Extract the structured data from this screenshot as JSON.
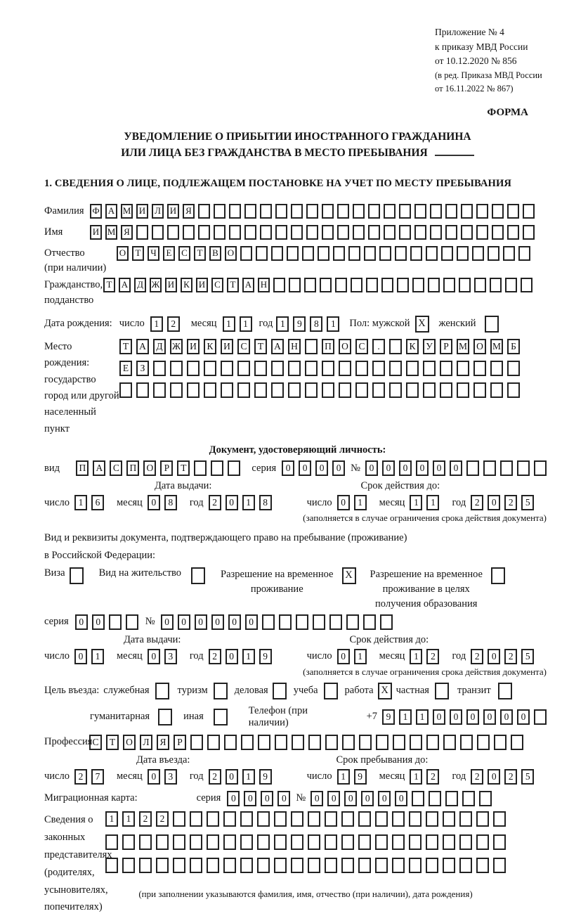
{
  "header": {
    "lines": [
      "Приложение № 4",
      "к приказу МВД России",
      "от 10.12.2020 № 856"
    ],
    "revision_lines": [
      "(в ред. Приказа МВД России",
      "от 16.11.2022 № 867)"
    ],
    "forma": "ФОРМА"
  },
  "title": {
    "line1": "УВЕДОМЛЕНИЕ О ПРИБЫТИИ ИНОСТРАННОГО ГРАЖДАНИНА",
    "line2": "ИЛИ ЛИЦА БЕЗ ГРАЖДАНСТВА В МЕСТО ПРЕБЫВАНИЯ"
  },
  "section1_heading": "1. СВЕДЕНИЯ О ЛИЦЕ, ПОДЛЕЖАЩЕМ ПОСТАНОВКЕ НА УЧЕТ ПО МЕСТУ ПРЕБЫВАНИЯ",
  "surname": {
    "label": "Фамилия",
    "value": "ФАМИЛИЯ",
    "count": 29
  },
  "firstname": {
    "label": "Имя",
    "value": "ИМЯ",
    "count": 29
  },
  "patronymic": {
    "label": "Отчество",
    "label_note": "(при наличии)",
    "value": "ОТЧЕСТВО",
    "count": 27
  },
  "citizenship": {
    "label": "Гражданство,",
    "label2": "подданство",
    "value": "ТАДЖИКИСТАН",
    "count": 28
  },
  "birth_date": {
    "label": "Дата рождения:",
    "day_label": "число",
    "day": {
      "value": "12",
      "count": 2
    },
    "month_label": "месяц",
    "month": {
      "value": "11",
      "count": 2
    },
    "year_label": "год",
    "year": {
      "value": "1981",
      "count": 4
    },
    "sex_label": "Пол: мужской",
    "male_checked": true,
    "female_label": "женский",
    "female_checked": false
  },
  "birth_place": {
    "label_lines": [
      "Место рождения:",
      "государство",
      "город или другой",
      "населенный пункт"
    ],
    "row1": {
      "value": "ТАДЖИКИСТАН ПОС. КУРМОМБ",
      "count": 24
    },
    "row2": {
      "value": "ЕЗ",
      "count": 24
    },
    "row3": {
      "value": "",
      "count": 24
    }
  },
  "identity_doc": {
    "heading": "Документ, удостоверяющий личность:",
    "kind_label": "вид",
    "kind": {
      "value": "ПАСПОРТ",
      "count": 10
    },
    "series_label": "серия",
    "series": {
      "value": "0000",
      "count": 4
    },
    "number_label": "№",
    "number": {
      "value": "000000",
      "count": 11
    },
    "issue_label": "Дата выдачи:",
    "issue_day_label": "число",
    "issue_day": {
      "value": "16",
      "count": 2
    },
    "issue_month_label": "месяц",
    "issue_month": {
      "value": "08",
      "count": 2
    },
    "issue_year_label": "год",
    "issue_year": {
      "value": "2018",
      "count": 4
    },
    "valid_label": "Срок действия до:",
    "valid_day_label": "число",
    "valid_day": {
      "value": "01",
      "count": 2
    },
    "valid_month_label": "месяц",
    "valid_month": {
      "value": "11",
      "count": 2
    },
    "valid_year_label": "год",
    "valid_year": {
      "value": "2025",
      "count": 4
    },
    "note": "(заполняется в случае ограничения срока действия документа)"
  },
  "residence_doc": {
    "intro_line1": "Вид и реквизиты документа, подтверждающего право на пребывание (проживание)",
    "intro_line2": "в Российской Федерации:",
    "visa_label": "Виза",
    "visa_checked": false,
    "residence_permit_label": "Вид на жительство",
    "residence_permit_checked": false,
    "temp_permit_line1": "Разрешение на временное",
    "temp_permit_line2": "проживание",
    "temp_permit_checked": true,
    "edu_permit_line1": "Разрешение на временное",
    "edu_permit_line2": "проживание в целях",
    "edu_permit_line3": "получения образования",
    "edu_permit_checked": false,
    "series_label": "серия",
    "series": {
      "value": "00",
      "count": 4
    },
    "number_label": "№",
    "number": {
      "value": "000000",
      "count": 14
    },
    "issue_label": "Дата выдачи:",
    "issue_day_label": "число",
    "issue_day": {
      "value": "01",
      "count": 2
    },
    "issue_month_label": "месяц",
    "issue_month": {
      "value": "03",
      "count": 2
    },
    "issue_year_label": "год",
    "issue_year": {
      "value": "2019",
      "count": 4
    },
    "valid_label": "Срок действия до:",
    "valid_day_label": "число",
    "valid_day": {
      "value": "01",
      "count": 2
    },
    "valid_month_label": "месяц",
    "valid_month": {
      "value": "12",
      "count": 2
    },
    "valid_year_label": "год",
    "valid_year": {
      "value": "2025",
      "count": 4
    },
    "note": "(заполняется в случае ограничения срока действия документа)"
  },
  "purpose": {
    "label": "Цель въезда:",
    "items": [
      {
        "label": "служебная",
        "checked": false
      },
      {
        "label": "туризм",
        "checked": false
      },
      {
        "label": "деловая",
        "checked": false
      },
      {
        "label": "учеба",
        "checked": false
      },
      {
        "label": "работа",
        "checked": true
      },
      {
        "label": "частная",
        "checked": false
      },
      {
        "label": "транзит",
        "checked": false
      },
      {
        "label": "гуманитарная",
        "checked": false
      },
      {
        "label": "иная",
        "checked": false
      }
    ],
    "phone_label": "Телефон (при наличии)",
    "phone_prefix": "+7",
    "phone": {
      "value": "911000000",
      "count": 10
    }
  },
  "profession": {
    "label": "Профессия",
    "value": "СТОЛЯР",
    "count": 26
  },
  "entry": {
    "entry_label": "Дата въезда:",
    "entry_day_label": "число",
    "entry_day": {
      "value": "27",
      "count": 2
    },
    "entry_month_label": "месяц",
    "entry_month": {
      "value": "03",
      "count": 2
    },
    "entry_year_label": "год",
    "entry_year": {
      "value": "2019",
      "count": 4
    },
    "stay_label": "Срок пребывания до:",
    "stay_day_label": "число",
    "stay_day": {
      "value": "19",
      "count": 2
    },
    "stay_month_label": "месяц",
    "stay_month": {
      "value": "12",
      "count": 2
    },
    "stay_year_label": "год",
    "stay_year": {
      "value": "2025",
      "count": 4
    }
  },
  "migration_card": {
    "label": "Миграционная карта:",
    "series_label": "серия",
    "series": {
      "value": "0000",
      "count": 4
    },
    "number_label": "№",
    "number": {
      "value": "000000",
      "count": 11
    }
  },
  "representatives": {
    "label_lines": [
      "Сведения о",
      "законных",
      "представителях",
      "(родителях,",
      "усыновителях,",
      "попечителях)"
    ],
    "row1": {
      "value": "1122",
      "count": 24
    },
    "row2": {
      "value": "",
      "count": 24
    },
    "row3": {
      "value": "",
      "count": 24
    },
    "note": "(при заполнении указываются фамилия, имя, отчество (при наличии), дата рождения)"
  }
}
